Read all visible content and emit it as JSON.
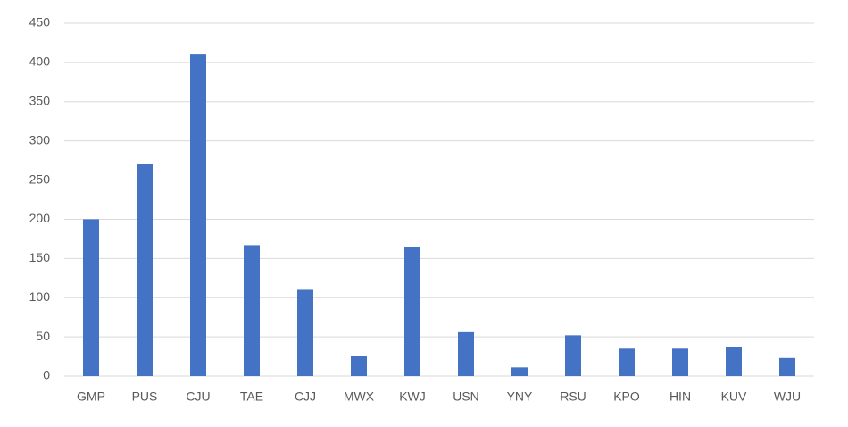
{
  "chart_data": {
    "type": "bar",
    "categories": [
      "GMP",
      "PUS",
      "CJU",
      "TAE",
      "CJJ",
      "MWX",
      "KWJ",
      "USN",
      "YNY",
      "RSU",
      "KPO",
      "HIN",
      "KUV",
      "WJU"
    ],
    "values": [
      200,
      270,
      410,
      167,
      110,
      26,
      165,
      56,
      11,
      52,
      35,
      35,
      37,
      23
    ],
    "color": "#4472c4",
    "ylim": [
      0,
      450
    ],
    "yticks": [
      0,
      50,
      100,
      150,
      200,
      250,
      300,
      350,
      400,
      450
    ],
    "grid": true
  }
}
